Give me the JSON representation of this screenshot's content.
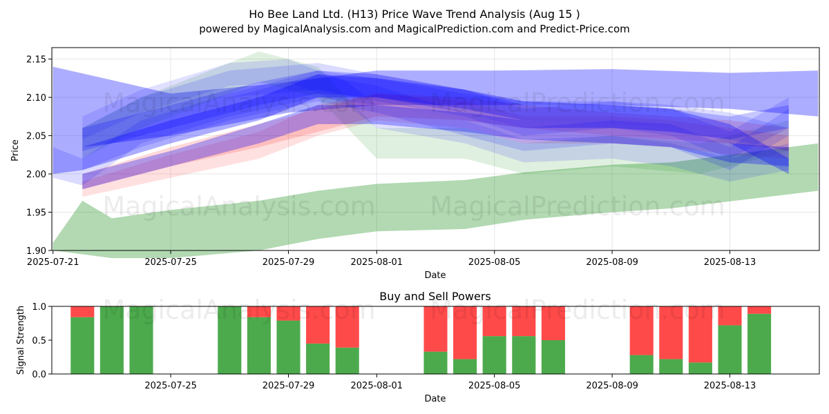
{
  "figure": {
    "title": "Ho Bee Land Ltd. (H13) Price Wave Trend Analysis (Aug 15 )",
    "subtitle": "powered by MagicalAnalysis.com and MagicalPrediction.com and Predict-Price.com",
    "watermarks": [
      "MagicalAnalysis.com",
      "MagicalPrediction.com"
    ],
    "colors": {
      "blue": "#0000ff",
      "green": "#008000",
      "red": "#ff0000",
      "buy": "#4caa4c",
      "sell": "#ff4a4a"
    }
  },
  "chart_data": [
    {
      "type": "area",
      "title": "",
      "xlabel": "Date",
      "ylabel": "Price",
      "xlim": [
        "2025-07-21",
        "2025-08-16"
      ],
      "ylim": [
        1.9,
        2.165
      ],
      "xticks": [
        "2025-07-21",
        "2025-07-25",
        "2025-07-29",
        "2025-08-01",
        "2025-08-05",
        "2025-08-09",
        "2025-08-13"
      ],
      "yticks": [
        1.9,
        1.95,
        2.0,
        2.05,
        2.1,
        2.15
      ],
      "series": [
        {
          "color": "blue",
          "opacity": 0.32,
          "points": [
            [
              "2025-07-21",
              2.03,
              2.14
            ],
            [
              "2025-07-25",
              2.05,
              2.105
            ],
            [
              "2025-07-29",
              2.08,
              2.12
            ],
            [
              "2025-08-01",
              2.09,
              2.135
            ],
            [
              "2025-08-05",
              2.09,
              2.135
            ],
            [
              "2025-08-09",
              2.09,
              2.137
            ],
            [
              "2025-08-13",
              2.085,
              2.132
            ],
            [
              "2025-08-16",
              2.075,
              2.135
            ]
          ]
        },
        {
          "color": "green",
          "opacity": 0.3,
          "points": [
            [
              "2025-07-21",
              1.9,
              1.91
            ],
            [
              "2025-07-22",
              1.895,
              1.965
            ],
            [
              "2025-07-23",
              1.89,
              1.942
            ],
            [
              "2025-07-25",
              1.89,
              1.953
            ],
            [
              "2025-07-28",
              1.9,
              1.965
            ],
            [
              "2025-07-30",
              1.915,
              1.978
            ],
            [
              "2025-08-01",
              1.925,
              1.987
            ],
            [
              "2025-08-04",
              1.928,
              1.992
            ],
            [
              "2025-08-06",
              1.94,
              2.002
            ],
            [
              "2025-08-09",
              1.95,
              2.012
            ],
            [
              "2025-08-11",
              1.955,
              2.015
            ],
            [
              "2025-08-16",
              1.978,
              2.04
            ]
          ]
        },
        {
          "color": "green",
          "opacity": 0.12,
          "points": [
            [
              "2025-07-22",
              2.02,
              2.06
            ],
            [
              "2025-07-24",
              2.06,
              2.1
            ],
            [
              "2025-07-26",
              2.09,
              2.13
            ],
            [
              "2025-07-28",
              2.12,
              2.16
            ],
            [
              "2025-07-30",
              2.1,
              2.14
            ],
            [
              "2025-07-31",
              2.06,
              2.1
            ],
            [
              "2025-08-01",
              2.02,
              2.06
            ],
            [
              "2025-08-04",
              2.02,
              2.06
            ],
            [
              "2025-08-06",
              2.0,
              2.04
            ],
            [
              "2025-08-09",
              2.01,
              2.05
            ],
            [
              "2025-08-12",
              2.0,
              2.04
            ],
            [
              "2025-08-15",
              2.03,
              2.07
            ]
          ]
        },
        {
          "color": "red",
          "opacity": 0.12,
          "points": [
            [
              "2025-07-22",
              1.97,
              1.99
            ],
            [
              "2025-07-25",
              1.995,
              2.025
            ],
            [
              "2025-07-28",
              2.02,
              2.055
            ],
            [
              "2025-07-30",
              2.05,
              2.09
            ],
            [
              "2025-08-01",
              2.07,
              2.105
            ],
            [
              "2025-08-04",
              2.06,
              2.095
            ],
            [
              "2025-08-06",
              2.04,
              2.075
            ],
            [
              "2025-08-09",
              2.04,
              2.075
            ],
            [
              "2025-08-11",
              2.035,
              2.07
            ],
            [
              "2025-08-13",
              2.025,
              2.06
            ],
            [
              "2025-08-15",
              2.02,
              2.05
            ]
          ]
        },
        {
          "color": "red",
          "opacity": 0.15,
          "points": [
            [
              "2025-07-22",
              1.98,
              2.0
            ],
            [
              "2025-07-25",
              2.01,
              2.035
            ],
            [
              "2025-07-28",
              2.035,
              2.065
            ],
            [
              "2025-07-30",
              2.055,
              2.085
            ],
            [
              "2025-08-01",
              2.075,
              2.105
            ],
            [
              "2025-08-04",
              2.07,
              2.1
            ],
            [
              "2025-08-06",
              2.06,
              2.09
            ],
            [
              "2025-08-09",
              2.05,
              2.08
            ],
            [
              "2025-08-11",
              2.045,
              2.075
            ],
            [
              "2025-08-13",
              2.04,
              2.07
            ],
            [
              "2025-08-15",
              2.03,
              2.06
            ]
          ]
        },
        {
          "color": "blue",
          "opacity": 0.14,
          "points": [
            [
              "2025-07-21",
              1.995,
              2.035
            ],
            [
              "2025-07-22",
              1.985,
              2.02
            ],
            [
              "2025-07-24",
              2.04,
              2.07
            ],
            [
              "2025-07-27",
              2.075,
              2.105
            ],
            [
              "2025-07-30",
              2.1,
              2.135
            ],
            [
              "2025-08-01",
              2.09,
              2.125
            ],
            [
              "2025-08-04",
              2.07,
              2.105
            ],
            [
              "2025-08-06",
              2.06,
              2.095
            ],
            [
              "2025-08-09",
              2.06,
              2.095
            ],
            [
              "2025-08-11",
              2.055,
              2.09
            ],
            [
              "2025-08-13",
              2.045,
              2.08
            ],
            [
              "2025-08-15",
              2.03,
              2.06
            ]
          ]
        },
        {
          "color": "blue",
          "opacity": 0.14,
          "points": [
            [
              "2025-07-22",
              2.03,
              2.06
            ],
            [
              "2025-07-24",
              2.065,
              2.1
            ],
            [
              "2025-07-27",
              2.1,
              2.135
            ],
            [
              "2025-07-30",
              2.11,
              2.145
            ],
            [
              "2025-08-01",
              2.095,
              2.13
            ],
            [
              "2025-08-04",
              2.075,
              2.11
            ],
            [
              "2025-08-06",
              2.05,
              2.085
            ],
            [
              "2025-08-09",
              2.06,
              2.095
            ],
            [
              "2025-08-11",
              2.05,
              2.085
            ],
            [
              "2025-08-13",
              2.02,
              2.055
            ],
            [
              "2025-08-15",
              2.06,
              2.1
            ]
          ]
        },
        {
          "color": "blue",
          "opacity": 0.15,
          "points": [
            [
              "2025-07-22",
              2.005,
              2.03
            ],
            [
              "2025-07-24",
              2.035,
              2.065
            ],
            [
              "2025-07-27",
              2.07,
              2.1
            ],
            [
              "2025-07-30",
              2.095,
              2.13
            ],
            [
              "2025-08-01",
              2.08,
              2.115
            ],
            [
              "2025-08-04",
              2.05,
              2.08
            ],
            [
              "2025-08-06",
              2.03,
              2.06
            ],
            [
              "2025-08-09",
              2.04,
              2.07
            ],
            [
              "2025-08-11",
              2.035,
              2.065
            ],
            [
              "2025-08-13",
              2.005,
              2.035
            ],
            [
              "2025-08-15",
              2.05,
              2.085
            ]
          ]
        },
        {
          "color": "blue",
          "opacity": 0.12,
          "points": [
            [
              "2025-07-22",
              2.045,
              2.075
            ],
            [
              "2025-07-24",
              2.08,
              2.11
            ],
            [
              "2025-07-27",
              2.115,
              2.145
            ],
            [
              "2025-07-29",
              2.12,
              2.15
            ],
            [
              "2025-07-31",
              2.09,
              2.12
            ],
            [
              "2025-08-01",
              2.06,
              2.09
            ],
            [
              "2025-08-04",
              2.04,
              2.07
            ],
            [
              "2025-08-06",
              2.015,
              2.045
            ],
            [
              "2025-08-09",
              2.02,
              2.05
            ],
            [
              "2025-08-11",
              2.01,
              2.04
            ],
            [
              "2025-08-13",
              1.99,
              2.02
            ],
            [
              "2025-08-15",
              2.005,
              2.04
            ]
          ]
        },
        {
          "color": "blue",
          "opacity": 0.32,
          "points": [
            [
              "2025-07-21",
              2.0,
              2.03
            ],
            [
              "2025-07-22",
              2.005,
              2.035
            ],
            [
              "2025-07-25",
              2.04,
              2.07
            ],
            [
              "2025-07-28",
              2.07,
              2.1
            ],
            [
              "2025-07-30",
              2.1,
              2.13
            ],
            [
              "2025-08-01",
              2.1,
              2.125
            ],
            [
              "2025-08-04",
              2.085,
              2.11
            ],
            [
              "2025-08-06",
              2.07,
              2.095
            ],
            [
              "2025-08-09",
              2.065,
              2.09
            ],
            [
              "2025-08-11",
              2.06,
              2.085
            ],
            [
              "2025-08-13",
              2.04,
              2.065
            ],
            [
              "2025-08-15",
              2.0,
              2.02
            ]
          ]
        },
        {
          "color": "blue",
          "opacity": 0.3,
          "points": [
            [
              "2025-07-22",
              1.98,
              2.0
            ],
            [
              "2025-07-25",
              2.01,
              2.03
            ],
            [
              "2025-07-28",
              2.04,
              2.065
            ],
            [
              "2025-07-30",
              2.065,
              2.09
            ],
            [
              "2025-08-01",
              2.065,
              2.09
            ],
            [
              "2025-08-04",
              2.055,
              2.08
            ],
            [
              "2025-08-06",
              2.045,
              2.07
            ],
            [
              "2025-08-09",
              2.04,
              2.065
            ],
            [
              "2025-08-11",
              2.035,
              2.06
            ],
            [
              "2025-08-13",
              2.015,
              2.04
            ],
            [
              "2025-08-15",
              2.01,
              2.035
            ]
          ]
        },
        {
          "color": "blue",
          "opacity": 0.22,
          "points": [
            [
              "2025-07-22",
              2.03,
              2.06
            ],
            [
              "2025-07-25",
              2.06,
              2.09
            ],
            [
              "2025-07-28",
              2.09,
              2.12
            ],
            [
              "2025-07-30",
              2.105,
              2.135
            ],
            [
              "2025-08-01",
              2.1,
              2.13
            ],
            [
              "2025-08-04",
              2.08,
              2.11
            ],
            [
              "2025-08-06",
              2.06,
              2.09
            ],
            [
              "2025-08-09",
              2.06,
              2.09
            ],
            [
              "2025-08-11",
              2.055,
              2.085
            ],
            [
              "2025-08-13",
              2.045,
              2.075
            ],
            [
              "2025-08-15",
              2.06,
              2.09
            ]
          ]
        }
      ]
    },
    {
      "type": "bar",
      "title": "Buy and Sell Powers",
      "xlabel": "Date",
      "ylabel": "Signal Strength",
      "ylim": [
        0,
        1
      ],
      "xlim": [
        "2025-07-21",
        "2025-08-16"
      ],
      "yticks": [
        "0.0",
        "0.5",
        "1.0"
      ],
      "xticks": [
        "2025-07-25",
        "2025-07-29",
        "2025-08-01",
        "2025-08-05",
        "2025-08-09",
        "2025-08-13"
      ],
      "categories": [
        "2025-07-22",
        "2025-07-23",
        "2025-07-24",
        "2025-07-27",
        "2025-07-28",
        "2025-07-29",
        "2025-07-30",
        "2025-07-31",
        "2025-08-03",
        "2025-08-04",
        "2025-08-05",
        "2025-08-06",
        "2025-08-07",
        "2025-08-10",
        "2025-08-11",
        "2025-08-12",
        "2025-08-13",
        "2025-08-14"
      ],
      "series": [
        {
          "name": "Buy",
          "color": "#4caa4c",
          "values": [
            0.84,
            1.0,
            1.0,
            1.0,
            0.84,
            0.79,
            0.45,
            0.39,
            0.33,
            0.22,
            0.56,
            0.56,
            0.5,
            0.28,
            0.22,
            0.17,
            0.72,
            0.89
          ]
        },
        {
          "name": "Sell",
          "color": "#ff4a4a",
          "values": [
            0.16,
            0.0,
            0.0,
            0.0,
            0.16,
            0.21,
            0.55,
            0.61,
            0.67,
            0.78,
            0.44,
            0.44,
            0.5,
            0.72,
            0.78,
            0.83,
            0.28,
            0.11
          ]
        }
      ]
    }
  ]
}
